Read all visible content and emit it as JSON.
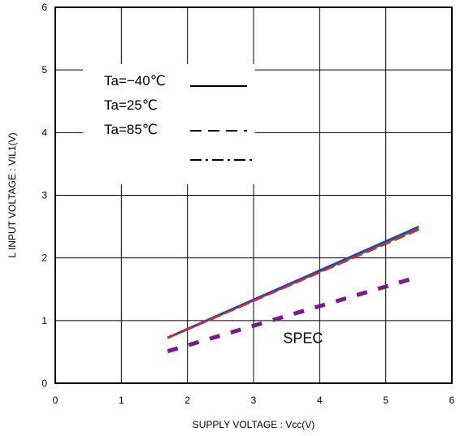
{
  "chart_data": {
    "type": "line",
    "title": "",
    "xlabel": "SUPPLY VOLTAGE : Vcc(V)",
    "ylabel": "L INPUT VOLTAGE : VIL1(V)",
    "xlim": [
      0,
      6
    ],
    "ylim": [
      0,
      6
    ],
    "xticks": [
      "0",
      "1",
      "2",
      "3",
      "4",
      "5",
      "6"
    ],
    "yticks": [
      "0",
      "1",
      "2",
      "3",
      "4",
      "5",
      "6"
    ],
    "grid": true,
    "legend": {
      "placement": "top-left",
      "entries": [
        "Ta=−40℃",
        "Ta=25℃",
        "Ta=85℃",
        ""
      ],
      "line_styles": [
        "solid",
        "solid",
        "dashed",
        "dashdot"
      ]
    },
    "series": [
      {
        "label": "Ta=−40℃",
        "color": "#1a3fd6",
        "style": "solid",
        "x": [
          1.7,
          5.5
        ],
        "y": [
          0.73,
          2.5
        ]
      },
      {
        "label": "Ta=25℃",
        "color": "#2e8b2e",
        "style": "solid",
        "x": [
          1.7,
          5.5
        ],
        "y": [
          0.72,
          2.47
        ]
      },
      {
        "label": "Ta=85℃",
        "color": "#e8281e",
        "style": "dashed",
        "x": [
          1.7,
          5.5
        ],
        "y": [
          0.72,
          2.45
        ]
      },
      {
        "label": "SPEC",
        "color": "#7b1a8c",
        "style": "dashed-thick",
        "x": [
          1.7,
          5.5
        ],
        "y": [
          0.51,
          1.7
        ]
      }
    ],
    "annotations": [
      {
        "text": "SPEC",
        "x": 4.0,
        "y": 0.73
      }
    ]
  }
}
